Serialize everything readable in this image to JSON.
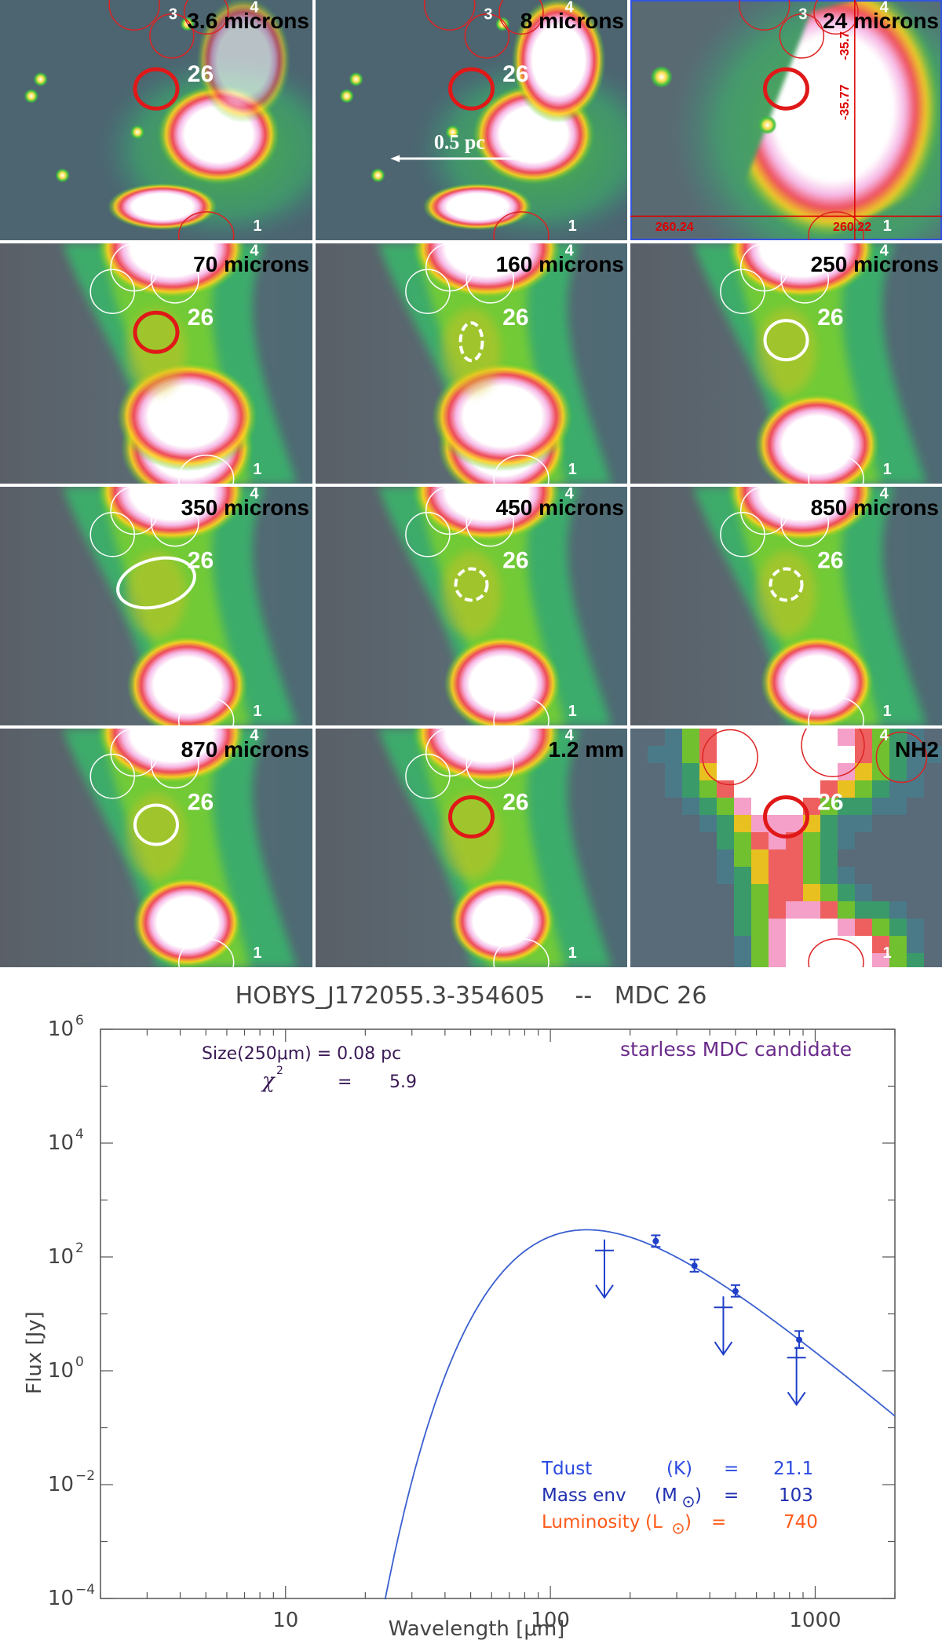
{
  "panels": [
    {
      "id": "p36",
      "title": "3.6 microns",
      "style": "irac",
      "aperture": "red"
    },
    {
      "id": "p8",
      "title": "8 microns",
      "style": "irac",
      "aperture": "red",
      "scalebar": "0.5 pc"
    },
    {
      "id": "p24",
      "title": "24 microns",
      "style": "mips",
      "aperture": "red",
      "coords": {
        "ra_left": "260.24",
        "ra_right": "260.22",
        "dec_top": "-35.7",
        "dec_mid": "-35.77"
      }
    },
    {
      "id": "p70",
      "title": "70 microns",
      "style": "far",
      "aperture": "red"
    },
    {
      "id": "p160",
      "title": "160 microns",
      "style": "far",
      "aperture": "white-dashed"
    },
    {
      "id": "p250",
      "title": "250 microns",
      "style": "far",
      "aperture": "white"
    },
    {
      "id": "p350",
      "title": "350 microns",
      "style": "far",
      "aperture": "white"
    },
    {
      "id": "p450",
      "title": "450 microns",
      "style": "far",
      "aperture": "white-dashed"
    },
    {
      "id": "p850",
      "title": "850 microns",
      "style": "far",
      "aperture": "white-dashed"
    },
    {
      "id": "p870",
      "title": "870 microns",
      "style": "far",
      "aperture": "white"
    },
    {
      "id": "p1200",
      "title": "1.2 mm",
      "style": "far",
      "aperture": "red"
    },
    {
      "id": "pnh2",
      "title": "NH2",
      "style": "nh2",
      "aperture": "red"
    }
  ],
  "source_labels": {
    "main": "26",
    "n1": "1",
    "n3": "3",
    "n4": "4"
  },
  "chart_data": {
    "type": "scatter",
    "title": "HOBYS_J172055.3-354605    --   MDC 26",
    "xlabel": "Wavelength [μm]",
    "ylabel": "Flux [Jy]",
    "xscale": "log",
    "yscale": "log",
    "xlim": [
      2,
      2000
    ],
    "ylim": [
      0.0001,
      1000000
    ],
    "xticks": [
      10,
      100,
      1000
    ],
    "yticks": [
      0.0001,
      0.01,
      1,
      100,
      10000,
      1000000
    ],
    "yticklabels": [
      {
        "base": "10",
        "exp": "−4"
      },
      {
        "base": "10",
        "exp": "−2"
      },
      {
        "base": "10",
        "exp": "0"
      },
      {
        "base": "10",
        "exp": "2"
      },
      {
        "base": "10",
        "exp": "4"
      },
      {
        "base": "10",
        "exp": "6"
      }
    ],
    "detections": [
      {
        "x": 250,
        "y": 190,
        "err_lo": 150,
        "err_hi": 240
      },
      {
        "x": 350,
        "y": 70,
        "err_lo": 55,
        "err_hi": 90
      },
      {
        "x": 500,
        "y": 25,
        "err_lo": 20,
        "err_hi": 32
      },
      {
        "x": 870,
        "y": 3.5,
        "err_lo": 2.5,
        "err_hi": 5
      }
    ],
    "upper_limits": [
      {
        "x": 160,
        "y": 130
      },
      {
        "x": 450,
        "y": 13
      },
      {
        "x": 850,
        "y": 1.7
      }
    ],
    "model_curve": {
      "tdust_K": 21.1,
      "beta": 2.0,
      "peak_x": 135,
      "peak_y": 300
    },
    "annotations": {
      "size_label": "Size(250μm) = 0.08 pc",
      "chi2_label": "χ",
      "chi2_exp": "2",
      "chi2_eq": "=",
      "chi2_value": "5.9",
      "classification": "starless MDC candidate",
      "tdust_label": "Tdust",
      "tdust_unit": "(K)",
      "tdust_value": "21.1",
      "mass_label": "Mass env",
      "mass_unit": "(M",
      "mass_value": "103",
      "lum_label": "Luminosity",
      "lum_unit": "(L",
      "lum_value": "740",
      "eq": "="
    },
    "colors": {
      "model": "#3a5fd0",
      "points": "#1f3fc8",
      "classification": "#6a2a8a",
      "size_text": "#3a1a55",
      "tdust": "#2a4ae0",
      "mass": "#2030b0",
      "lum": "#ff5a1a"
    }
  }
}
